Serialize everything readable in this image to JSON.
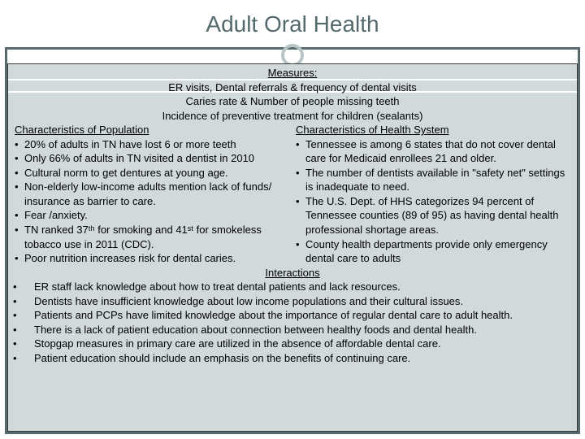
{
  "slide": {
    "title": "Adult Oral Health",
    "colors": {
      "title_color": "#53696d",
      "frame_color": "#576a6e",
      "box_bg": "#d2d9da",
      "circle_border": "#b7c5c8"
    },
    "measures": {
      "heading": "Measures:",
      "lines": [
        "ER visits, Dental referrals & frequency of dental visits",
        "Caries rate & Number of people missing teeth",
        "Incidence of preventive treatment for children (sealants)"
      ]
    },
    "population": {
      "heading": "Characteristics of Population",
      "bullets": [
        "20% of adults in TN have lost 6 or more teeth",
        "Only 66% of adults in TN visited a dentist in 2010",
        "Cultural norm to get dentures at young age.",
        "Non-elderly low-income adults mention lack of funds/ insurance as barrier to care.",
        "Fear /anxiety.",
        "TN ranked 37ᵗʰ for smoking and 41ˢᵗ for smokeless tobacco use in 2011 (CDC).",
        "Poor nutrition increases risk for dental caries."
      ]
    },
    "health_system": {
      "heading": "Characteristics of Health System",
      "bullets": [
        "Tennessee is among 6 states that do not cover dental care for Medicaid enrollees 21 and older.",
        "The number of dentists available in \"safety net\" settings is inadequate to need.",
        "The U.S. Dept. of HHS categorizes 94 percent of Tennessee counties (89 of 95) as having dental health professional shortage areas.",
        "County health departments provide only emergency dental care to adults"
      ]
    },
    "interactions": {
      "heading": "Interactions",
      "bullets": [
        "ER staff lack knowledge about how to treat dental patients and lack resources.",
        "Dentists have insufficient knowledge about low income populations and their cultural issues.",
        "Patients and PCPs have limited knowledge about the importance of regular dental care to adult health.",
        "There is a lack of patient education about connection between healthy foods and dental health.",
        "Stopgap measures in primary care are utilized in the absence of affordable dental care.",
        "Patient education should include an emphasis on the benefits of continuing care."
      ]
    }
  }
}
